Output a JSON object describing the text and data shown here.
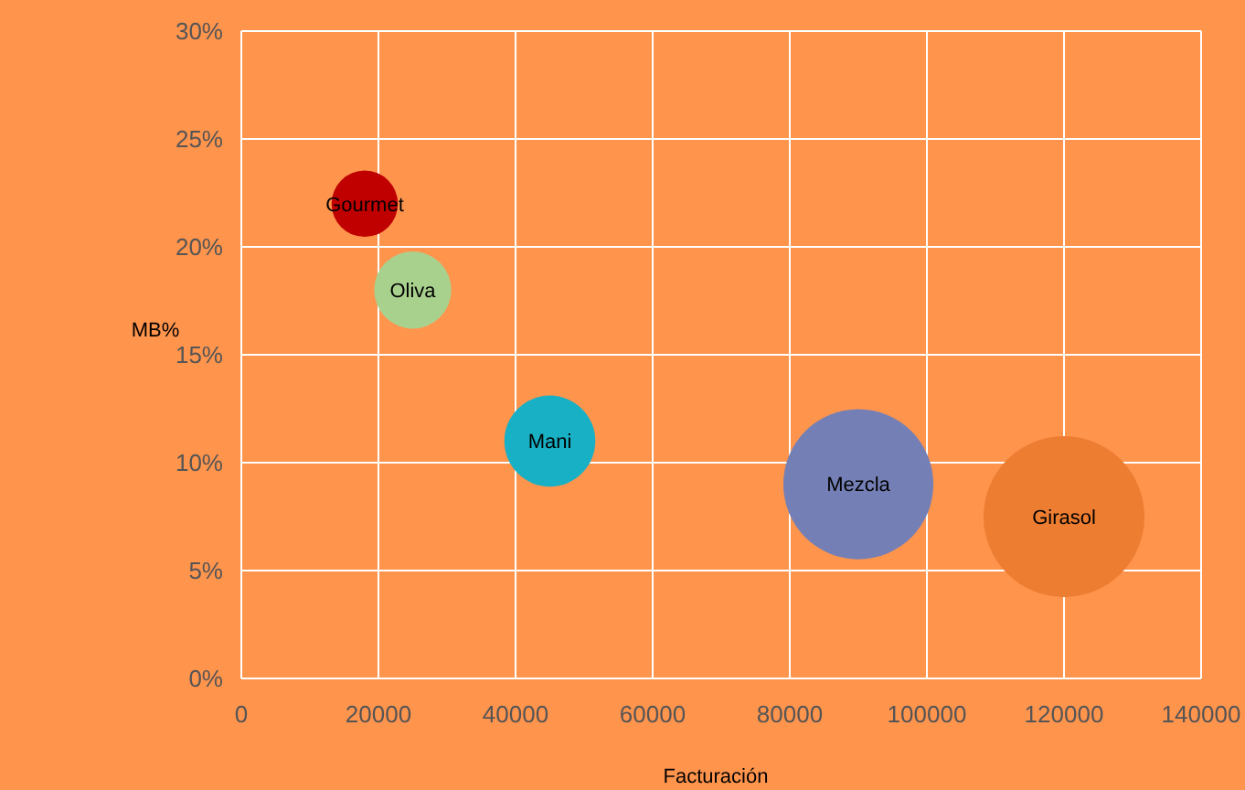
{
  "chart_data": {
    "type": "bubble",
    "xlabel": "Facturación",
    "ylabel": "MB%",
    "xlim": [
      0,
      140000
    ],
    "xticks": [
      0,
      20000,
      40000,
      60000,
      80000,
      100000,
      120000,
      140000
    ],
    "ylim": [
      0,
      30
    ],
    "yticks": [
      {
        "value": 0,
        "label": "0%"
      },
      {
        "value": 5,
        "label": "5%"
      },
      {
        "value": 10,
        "label": "10%"
      },
      {
        "value": 15,
        "label": "15%"
      },
      {
        "value": 20,
        "label": "20%"
      },
      {
        "value": 25,
        "label": "25%"
      },
      {
        "value": 30,
        "label": "30%"
      }
    ],
    "grid": true,
    "series": [
      {
        "name": "Gourmet",
        "color": "#c00000",
        "x": [
          18000
        ],
        "values": [
          22
        ],
        "sizes": [
          0.17
        ]
      },
      {
        "name": "Oliva",
        "color": "#a9d18e",
        "x": [
          25000
        ],
        "values": [
          18
        ],
        "sizes": [
          0.23
        ]
      },
      {
        "name": "Mani",
        "color": "#17b0c4",
        "x": [
          45000
        ],
        "values": [
          11
        ],
        "sizes": [
          0.32
        ]
      },
      {
        "name": "Mezcla",
        "color": "#7480b5",
        "x": [
          90000
        ],
        "values": [
          9
        ],
        "sizes": [
          0.87
        ]
      },
      {
        "name": "Girasol",
        "color": "#ed7d31",
        "x": [
          120000
        ],
        "values": [
          7.5
        ],
        "sizes": [
          1
        ]
      }
    ]
  }
}
